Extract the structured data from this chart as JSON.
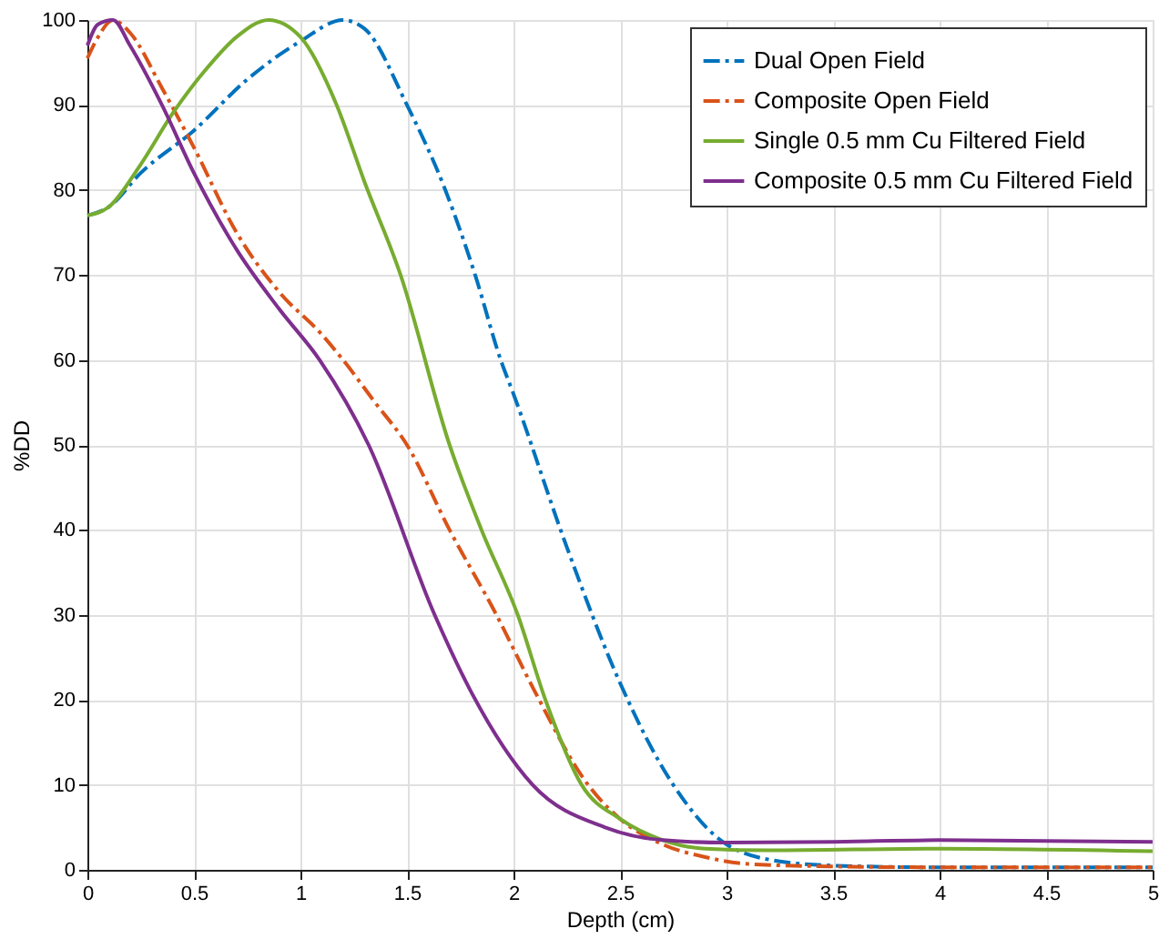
{
  "chart_data": {
    "type": "line",
    "xlabel": "Depth (cm)",
    "ylabel": "%DD",
    "xlim": [
      0,
      5
    ],
    "ylim": [
      0,
      100
    ],
    "xticks": [
      0,
      0.5,
      1,
      1.5,
      2,
      2.5,
      3,
      3.5,
      4,
      4.5,
      5
    ],
    "yticks": [
      0,
      10,
      20,
      30,
      40,
      50,
      60,
      70,
      80,
      90,
      100
    ],
    "grid": true,
    "legend": "top right",
    "series": [
      {
        "name": "Dual Open Field",
        "color": "#0072bd",
        "line_style": "dashed",
        "x": [
          0,
          0.1,
          0.25,
          0.5,
          0.75,
          1.0,
          1.2,
          1.3,
          1.5,
          1.68,
          1.82,
          1.94,
          2.0,
          2.25,
          2.5,
          2.75,
          3.0,
          3.25,
          3.5,
          4.0,
          4.5,
          5.0
        ],
        "values": [
          77,
          78,
          82,
          87,
          93,
          97.5,
          100,
          99,
          90,
          80,
          70,
          60,
          56,
          38,
          22,
          10,
          3,
          1,
          0.5,
          0.3,
          0.3,
          0.3
        ]
      },
      {
        "name": "Composite Open Field",
        "color": "#d95319",
        "line_style": "dashed",
        "x": [
          0,
          0.05,
          0.12,
          0.2,
          0.35,
          0.5,
          0.7,
          0.9,
          1.1,
          1.2,
          1.35,
          1.5,
          1.7,
          1.92,
          2.1,
          2.35,
          2.5,
          2.7,
          2.9,
          3.1,
          3.5,
          4.0,
          5.0
        ],
        "values": [
          95.5,
          98,
          100,
          98.5,
          92,
          85,
          75,
          68,
          63,
          60,
          55,
          50,
          40,
          30,
          21,
          10,
          6,
          3,
          1.5,
          0.7,
          0.4,
          0.3,
          0.3
        ]
      },
      {
        "name": "Single 0.5 mm Cu Filtered Field",
        "color": "#77ac30",
        "line_style": "solid",
        "x": [
          0,
          0.1,
          0.25,
          0.4,
          0.55,
          0.7,
          0.85,
          1.0,
          1.17,
          1.3,
          1.47,
          1.7,
          1.85,
          2.02,
          2.15,
          2.32,
          2.5,
          2.7,
          2.9,
          3.2,
          4.0,
          5.0
        ],
        "values": [
          77,
          78,
          83,
          89,
          94,
          98,
          100,
          98,
          90,
          81,
          70,
          50,
          40,
          30,
          20,
          10,
          6,
          3.5,
          2.5,
          2.3,
          2.5,
          2.2
        ]
      },
      {
        "name": "Composite 0.5 mm Cu Filtered Field",
        "color": "#7e2f8e",
        "line_style": "solid",
        "x": [
          0,
          0.05,
          0.12,
          0.2,
          0.35,
          0.5,
          0.7,
          0.9,
          1.09,
          1.32,
          1.63,
          1.8,
          2.09,
          2.43,
          2.7,
          3.0,
          3.5,
          4.0,
          5.0
        ],
        "values": [
          97,
          99.5,
          100,
          97,
          90,
          82,
          73,
          66,
          60,
          50,
          30,
          21,
          10,
          5,
          3.5,
          3.2,
          3.3,
          3.5,
          3.3
        ]
      }
    ]
  }
}
